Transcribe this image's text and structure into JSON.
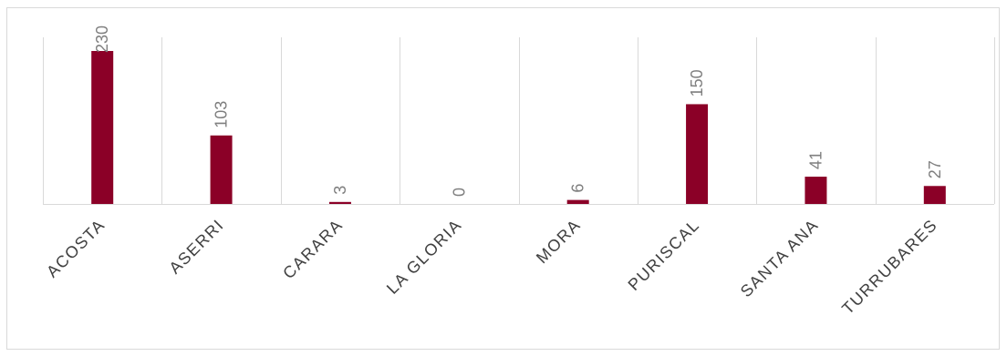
{
  "chart_data": {
    "type": "bar",
    "categories": [
      "ACOSTA",
      "ASERRI",
      "CARARA",
      "LA GLORIA",
      "MORA",
      "PURISCAL",
      "SANTA ANA",
      "TURRUBARES"
    ],
    "values": [
      230,
      103,
      3,
      0,
      6,
      150,
      41,
      27
    ],
    "title": "",
    "xlabel": "",
    "ylabel": "",
    "ylim": [
      0,
      250
    ],
    "bar_color": "#8b0027",
    "grid": "vertical category separators",
    "data_labels": [
      "230",
      "103",
      "3",
      "0",
      "6",
      "150",
      "41",
      "27"
    ],
    "legend": "none"
  }
}
